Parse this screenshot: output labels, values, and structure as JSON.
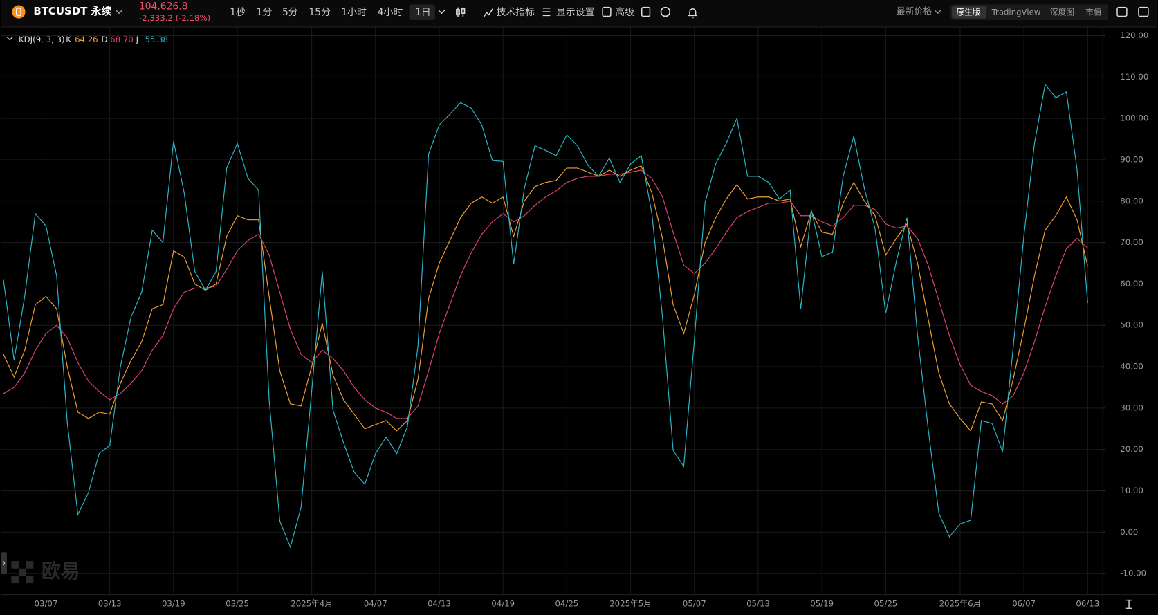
{
  "toolbar": {
    "symbol": "BTCUSDT 永续",
    "price": "104,626.8",
    "change": "-2,333.2 (-2.18%)",
    "intervals": [
      "1秒",
      "1分",
      "5分",
      "15分",
      "1小时",
      "4小时",
      "1日"
    ],
    "selected_interval": 6,
    "tools": [
      "技术指标",
      "显示设置",
      "高级"
    ],
    "price_type": "最新价格",
    "views": [
      "原生版",
      "TradingView",
      "深度图",
      "市值"
    ],
    "selected_view": 0
  },
  "watermark": "欧易",
  "chart_data": {
    "type": "line",
    "title": "KDJ(9, 3, 3)",
    "legend_values": [
      "64.26",
      "68.70",
      "55.38"
    ],
    "categories": [
      null,
      null,
      null,
      null,
      "03/07",
      null,
      null,
      null,
      null,
      null,
      "03/13",
      null,
      null,
      null,
      null,
      null,
      "03/19",
      null,
      null,
      null,
      null,
      null,
      "03/25",
      null,
      null,
      null,
      null,
      null,
      null,
      "2025年4月",
      null,
      null,
      null,
      null,
      null,
      "04/07",
      null,
      null,
      null,
      null,
      null,
      "04/13",
      null,
      null,
      null,
      null,
      null,
      "04/19",
      null,
      null,
      null,
      null,
      null,
      "04/25",
      null,
      null,
      null,
      null,
      null,
      "2025年5月",
      null,
      null,
      null,
      null,
      null,
      "05/07",
      null,
      null,
      null,
      null,
      null,
      "05/13",
      null,
      null,
      null,
      null,
      null,
      "05/19",
      null,
      null,
      null,
      null,
      null,
      "05/25",
      null,
      null,
      null,
      null,
      null,
      null,
      "2025年6月",
      null,
      null,
      null,
      null,
      null,
      "06/07",
      null,
      null,
      null,
      null,
      null,
      "06/13"
    ],
    "series": [
      {
        "name": "K",
        "color": "#f0a030",
        "values": [
          43,
          37.5,
          44,
          55,
          57,
          54,
          40,
          29,
          27.5,
          29,
          28.5,
          36,
          41.5,
          46,
          54,
          55,
          68,
          66.5,
          60,
          58.5,
          60,
          71.5,
          76.5,
          75.5,
          75.5,
          57,
          39,
          31,
          30.5,
          40,
          50.5,
          38,
          32,
          28.5,
          25,
          26,
          27,
          24.5,
          27,
          37,
          56.5,
          65,
          70.5,
          76,
          79.5,
          81,
          79.5,
          81,
          71.5,
          80,
          83.5,
          84.5,
          85,
          88,
          88,
          87,
          86,
          87.5,
          86,
          87.5,
          88.5,
          82,
          71,
          55,
          48,
          57.5,
          70,
          76,
          80.5,
          84,
          80.5,
          81,
          81,
          80,
          80.5,
          69,
          77.5,
          72.5,
          72,
          79.5,
          84.5,
          80,
          76.5,
          67,
          71,
          74.5,
          65,
          51.5,
          38.5,
          31,
          27.5,
          24.5,
          31.5,
          31,
          27,
          37,
          49,
          62,
          73,
          76.5,
          81,
          75.5,
          64.26
        ]
      },
      {
        "name": "D",
        "color": "#e0456e",
        "values": [
          33.5,
          35,
          38.5,
          44,
          48,
          50,
          47,
          41,
          36.5,
          34,
          32,
          33.5,
          36,
          39,
          44,
          47.5,
          54,
          58,
          59,
          59,
          59.5,
          63.5,
          68,
          70.5,
          72,
          67,
          58,
          49,
          43,
          41,
          44,
          42,
          39,
          35,
          32,
          30,
          29,
          27.5,
          27.5,
          30.5,
          39,
          48,
          55,
          62,
          67.5,
          72,
          75,
          77,
          75,
          76.5,
          79,
          81,
          82.5,
          84.5,
          85.5,
          86,
          86,
          86.5,
          86.5,
          87,
          87.5,
          85.5,
          81,
          72.5,
          64.5,
          62.5,
          65,
          68.5,
          72.5,
          76,
          77.5,
          78.5,
          79.5,
          79.5,
          80,
          76.5,
          76.5,
          75,
          74,
          76,
          79,
          79,
          78,
          74.5,
          73.5,
          74,
          71,
          64.5,
          56,
          47.5,
          40.5,
          35.5,
          34,
          33,
          31,
          33,
          38.5,
          46,
          54.5,
          62,
          68.5,
          71,
          68.7
        ]
      },
      {
        "name": "J",
        "color": "#2bb7c8",
        "values": [
          61,
          41.6,
          57,
          77,
          74,
          62,
          26.6,
          4.3,
          9.6,
          19,
          21,
          40,
          52,
          58,
          73,
          70,
          94.5,
          82,
          63,
          58.5,
          63,
          88,
          94,
          85.5,
          82.7,
          32,
          2.7,
          -3.6,
          6,
          34,
          63,
          29.5,
          21.6,
          14.5,
          11.6,
          19,
          23,
          19,
          25.5,
          45,
          91.4,
          98.4,
          101,
          103.8,
          102.5,
          98.4,
          89.8,
          89.6,
          64.8,
          83,
          93.4,
          92.3,
          91,
          96,
          93.4,
          88.6,
          86,
          90.4,
          84.5,
          89,
          91,
          77,
          52,
          19.8,
          15.9,
          46.6,
          79.6,
          89,
          94,
          100,
          86,
          86,
          84.5,
          80.5,
          82.7,
          54,
          77.9,
          66.6,
          67.7,
          86,
          95.7,
          83,
          73.4,
          52.9,
          65.4,
          76,
          47.5,
          25,
          4.6,
          -1.1,
          2,
          2.9,
          27,
          26.3,
          19.5,
          44.8,
          71.6,
          94,
          108.2,
          105,
          106.4,
          87.7,
          55.38
        ]
      }
    ],
    "ylim": [
      -15,
      122
    ],
    "yticks": [
      {
        "value": 120,
        "label": "120.00"
      },
      {
        "value": 110,
        "label": "110.00"
      },
      {
        "value": 100,
        "label": "100.00"
      },
      {
        "value": 90,
        "label": "90.00"
      },
      {
        "value": 80,
        "label": "80.00"
      },
      {
        "value": 70,
        "label": "70.00"
      },
      {
        "value": 60,
        "label": "60.00"
      },
      {
        "value": 50,
        "label": "50.00"
      },
      {
        "value": 40,
        "label": "40.00"
      },
      {
        "value": 30,
        "label": "30.00"
      },
      {
        "value": 20,
        "label": "20.00"
      },
      {
        "value": 10,
        "label": "10.00"
      },
      {
        "value": 0,
        "label": "0.00"
      },
      {
        "value": -10,
        "label": "-10.00"
      }
    ],
    "grid": true
  }
}
